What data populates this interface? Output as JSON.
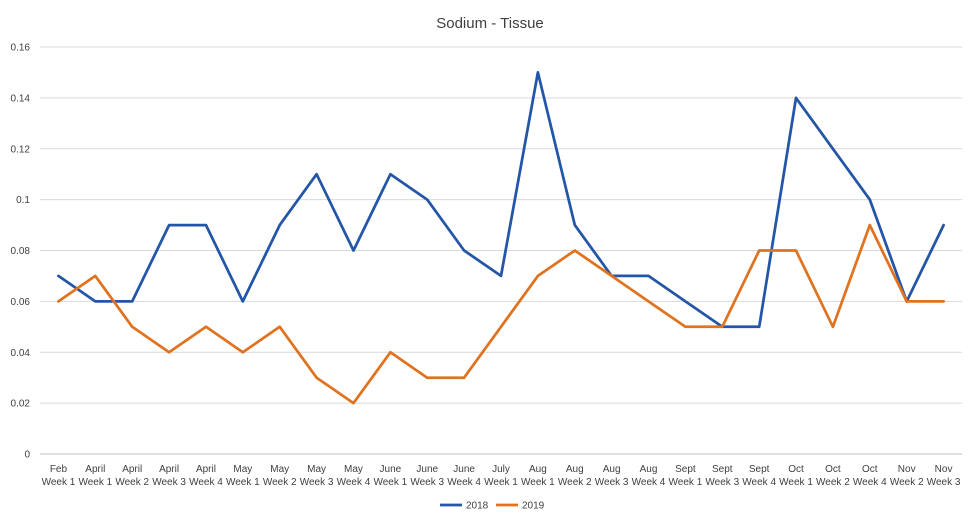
{
  "chart_data": {
    "type": "line",
    "title": "Sodium - Tissue",
    "xlabel": "",
    "ylabel": "",
    "ylim": [
      0,
      0.16
    ],
    "yticks": [
      "0",
      "0.02",
      "0.04",
      "0.06",
      "0.08",
      "0.1",
      "0.12",
      "0.14",
      "0.16"
    ],
    "grid": true,
    "legend_position": "bottom",
    "categories": [
      [
        "Feb",
        "Week 1"
      ],
      [
        "April",
        "Week 1"
      ],
      [
        "April",
        "Week 2"
      ],
      [
        "April",
        "Week 3"
      ],
      [
        "April",
        "Week 4"
      ],
      [
        "May",
        "Week 1"
      ],
      [
        "May",
        "Week 2"
      ],
      [
        "May",
        "Week 3"
      ],
      [
        "May",
        "Week 4"
      ],
      [
        "June",
        "Week 1"
      ],
      [
        "June",
        "Week 3"
      ],
      [
        "June",
        "Week 4"
      ],
      [
        "July",
        "Week 1"
      ],
      [
        "Aug",
        "Week 1"
      ],
      [
        "Aug",
        "Week 2"
      ],
      [
        "Aug",
        "Week 3"
      ],
      [
        "Aug",
        "Week 4"
      ],
      [
        "Sept",
        "Week 1"
      ],
      [
        "Sept",
        "Week 3"
      ],
      [
        "Sept",
        "Week 4"
      ],
      [
        "Oct",
        "Week 1"
      ],
      [
        "Oct",
        "Week 2"
      ],
      [
        "Oct",
        "Week 4"
      ],
      [
        "Nov",
        "Week 2"
      ],
      [
        "Nov",
        "Week 3"
      ]
    ],
    "series": [
      {
        "name": "2018",
        "color": "#2456a8",
        "values": [
          0.07,
          0.06,
          0.06,
          0.09,
          0.09,
          0.06,
          0.09,
          0.11,
          0.08,
          0.11,
          0.1,
          0.08,
          0.07,
          0.15,
          0.09,
          0.07,
          0.07,
          0.06,
          0.05,
          0.05,
          0.14,
          0.12,
          0.1,
          0.06,
          0.09
        ]
      },
      {
        "name": "2019",
        "color": "#e0731f",
        "values": [
          0.06,
          0.07,
          0.05,
          0.04,
          0.05,
          0.04,
          0.05,
          0.03,
          0.02,
          0.04,
          0.03,
          0.03,
          0.05,
          0.07,
          0.08,
          0.07,
          0.06,
          0.05,
          0.05,
          0.08,
          0.08,
          0.05,
          0.09,
          0.06,
          0.06
        ]
      }
    ]
  }
}
